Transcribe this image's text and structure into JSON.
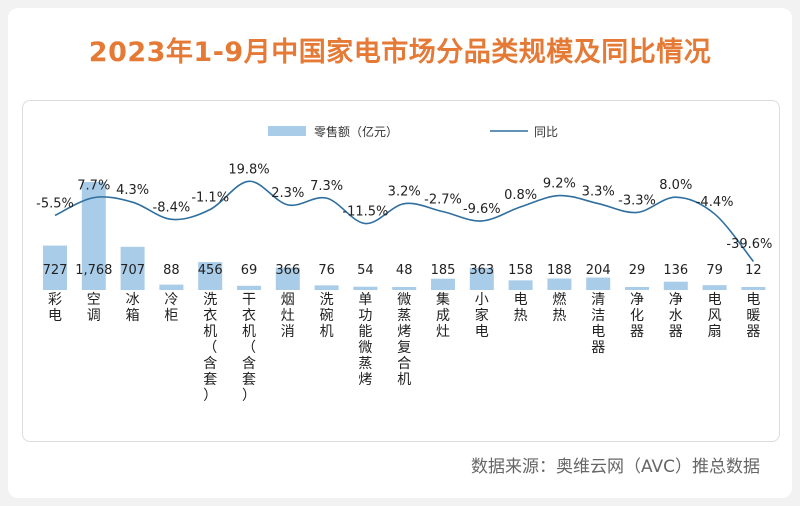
{
  "title": "2023年1-9月中国家电市场分品类规模及同比情况",
  "source": "数据来源：奥维云网（AVC）推总数据",
  "chart_data": {
    "type": "bar",
    "categories": [
      "彩电",
      "空调",
      "冰箱",
      "冷柜",
      "洗衣机（含套）",
      "干衣机（含套）",
      "烟灶消",
      "洗碗机",
      "单功能微蒸烤",
      "微蒸烤复合机",
      "集成灶",
      "小家电",
      "电热",
      "燃热",
      "清洁电器",
      "净化器",
      "净水器",
      "电风扇",
      "电暖器"
    ],
    "series": [
      {
        "name": "零售额（亿元）",
        "type": "bar",
        "values": [
          727,
          1768,
          707,
          88,
          456,
          69,
          366,
          76,
          54,
          48,
          185,
          363,
          158,
          188,
          204,
          29,
          136,
          79,
          12
        ],
        "labels": [
          "727",
          "1,768",
          "707",
          "88",
          "456",
          "69",
          "366",
          "76",
          "54",
          "48",
          "185",
          "363",
          "158",
          "188",
          "204",
          "29",
          "136",
          "79",
          "12"
        ]
      },
      {
        "name": "同比",
        "type": "line",
        "values": [
          -5.5,
          7.7,
          4.3,
          -8.4,
          -1.1,
          19.8,
          2.3,
          7.3,
          -11.5,
          3.2,
          -2.7,
          -9.6,
          0.8,
          9.2,
          3.3,
          -3.3,
          8.0,
          -4.4,
          -39.6
        ],
        "labels": [
          "-5.5%",
          "7.7%",
          "4.3%",
          "-8.4%",
          "-1.1%",
          "19.8%",
          "2.3%",
          "7.3%",
          "-11.5%",
          "3.2%",
          "-2.7%",
          "-9.6%",
          "0.8%",
          "9.2%",
          "3.3%",
          "-3.3%",
          "8.0%",
          "-4.4%",
          "-39.6%"
        ]
      }
    ],
    "legend": {
      "position": "top",
      "items": [
        "零售额（亿元）",
        "同比"
      ]
    },
    "colors": {
      "bar": "#a9cce9",
      "line": "#2f6f9f",
      "title": "#e47a35"
    },
    "grid": false
  }
}
